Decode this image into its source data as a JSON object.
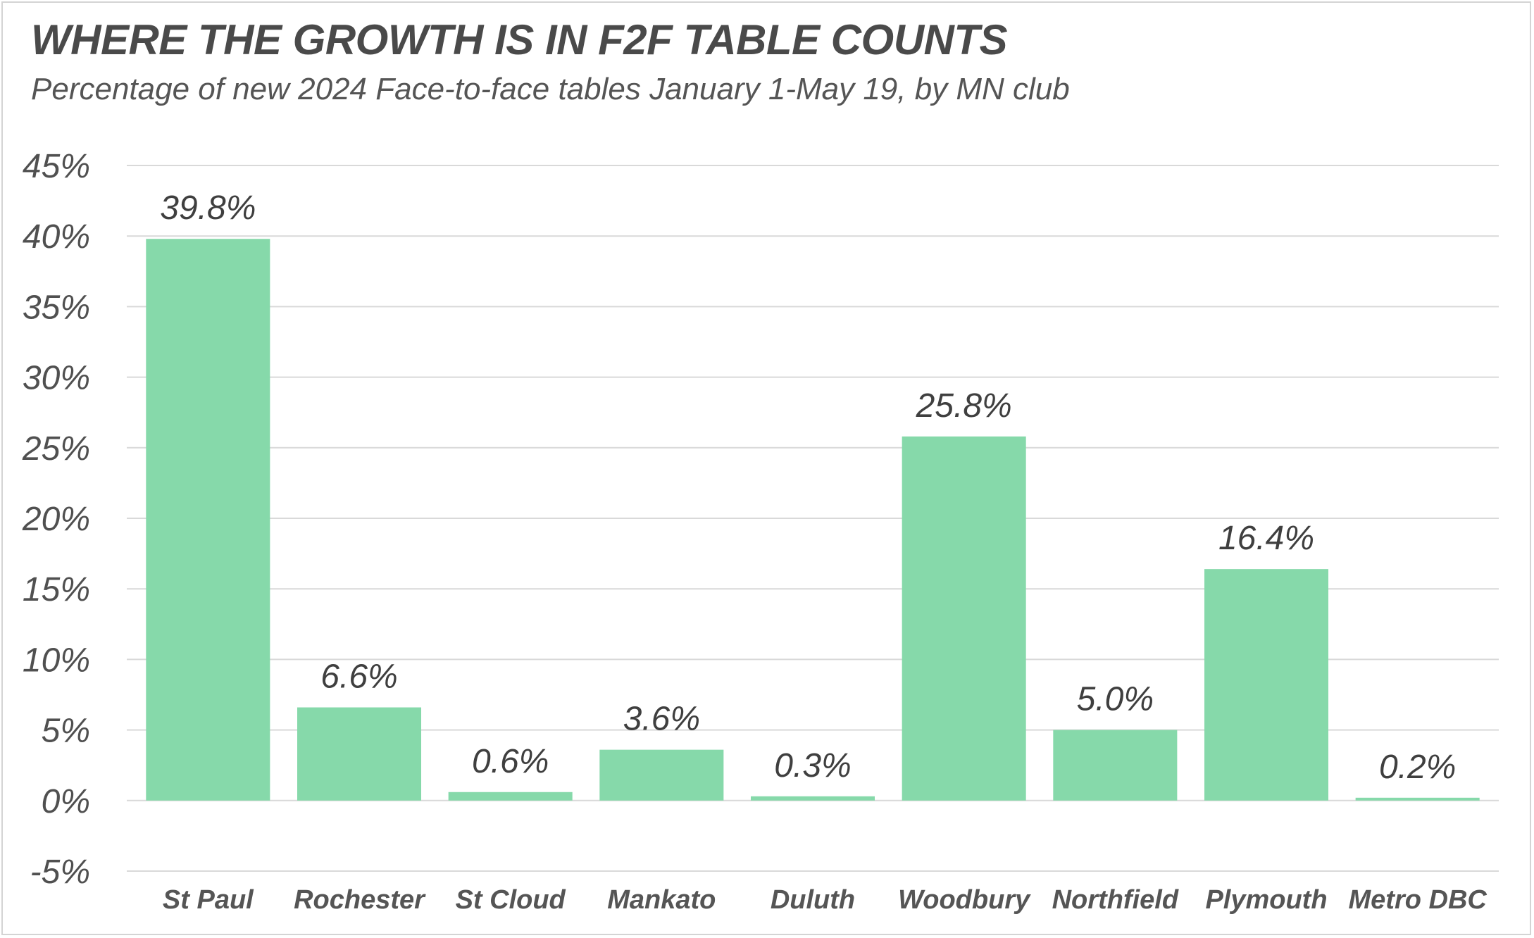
{
  "chart_data": {
    "type": "bar",
    "title": "WHERE THE GROWTH IS IN F2F TABLE COUNTS",
    "subtitle": "Percentage of new 2024 Face-to-face tables January 1-May 19, by MN club",
    "categories": [
      "St Paul",
      "Rochester",
      "St Cloud",
      "Mankato",
      "Duluth",
      "Woodbury",
      "Northfield",
      "Plymouth",
      "Metro DBC"
    ],
    "values": [
      39.8,
      6.6,
      0.6,
      3.6,
      0.3,
      25.8,
      5.0,
      16.4,
      0.2
    ],
    "data_labels": [
      "39.8%",
      "6.6%",
      "0.6%",
      "3.6%",
      "0.3%",
      "25.8%",
      "5.0%",
      "16.4%",
      "0.2%"
    ],
    "ylim": [
      -5,
      45
    ],
    "yticks": [
      -5,
      0,
      5,
      10,
      15,
      20,
      25,
      30,
      35,
      40,
      45
    ],
    "ytick_labels": [
      "-5%",
      "0%",
      "5%",
      "10%",
      "15%",
      "20%",
      "25%",
      "30%",
      "35%",
      "40%",
      "45%"
    ],
    "xlabel": "",
    "ylabel": "",
    "grid": true,
    "legend": "none",
    "colors": {
      "bar": "#86d9aa",
      "grid": "#d9d9d9",
      "text": "#4a4a4a"
    }
  }
}
